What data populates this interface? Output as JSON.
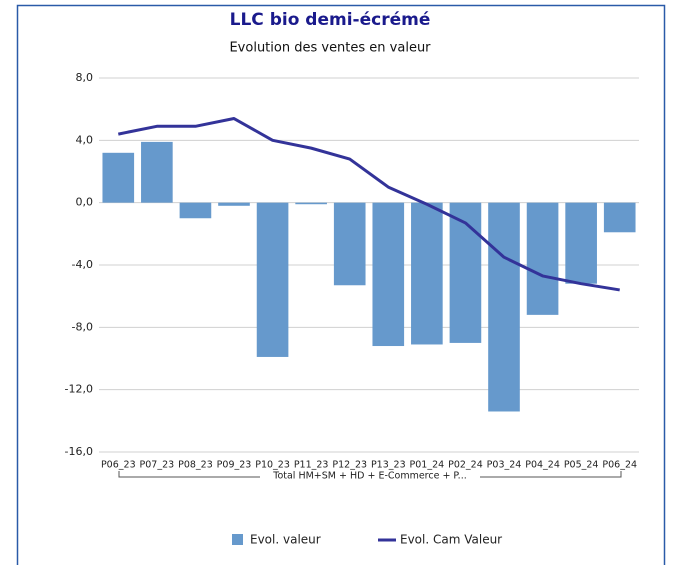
{
  "chart_data": {
    "type": "bar-line",
    "title": "LLC bio demi-écrémé",
    "subtitle": "Evolution des ventes en valeur",
    "categories": [
      "P06_23",
      "P07_23",
      "P08_23",
      "P09_23",
      "P10_23",
      "P11_23",
      "P12_23",
      "P13_23",
      "P01_24",
      "P02_24",
      "P03_24",
      "P04_24",
      "P05_24",
      "P06_24"
    ],
    "group_label": "Total HM+SM + HD + E-Commerce + P...",
    "series": [
      {
        "name": "Evol. valeur",
        "type": "bar",
        "color": "#6699cc",
        "values": [
          3.2,
          3.9,
          -1.0,
          -0.2,
          -9.9,
          -0.1,
          -5.3,
          -9.2,
          -9.1,
          -9.0,
          -13.4,
          -7.2,
          -5.2,
          -1.9
        ]
      },
      {
        "name": "Evol. Cam Valeur",
        "type": "line",
        "color": "#333399",
        "values": [
          4.4,
          4.9,
          4.9,
          5.4,
          4.0,
          3.5,
          2.8,
          1.0,
          -0.1,
          -1.3,
          -3.5,
          -4.7,
          -5.2,
          -5.6
        ]
      }
    ],
    "ylim": [
      -16,
      8
    ],
    "yticks": [
      {
        "value": -16,
        "label": "-16,0"
      },
      {
        "value": -12,
        "label": "-12,0"
      },
      {
        "value": -8,
        "label": "-8,0"
      },
      {
        "value": -4,
        "label": "-4,0"
      },
      {
        "value": 0,
        "label": "0,0"
      },
      {
        "value": 4,
        "label": "4,0"
      },
      {
        "value": 8,
        "label": "8,0"
      }
    ],
    "grid": true,
    "legend": "bottom"
  }
}
